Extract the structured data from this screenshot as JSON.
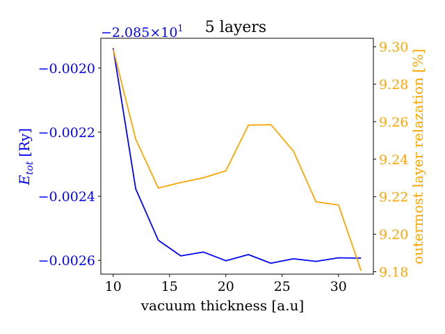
{
  "chart_data": {
    "type": "line",
    "title": "5 layers",
    "xlabel": "vacuum thickness [a.u]",
    "ylabel_left_main": "E",
    "ylabel_left_sub": "tot",
    "ylabel_left_unit": "[Ry]",
    "ylabel_right": "outermost layer relazation [%]",
    "offset_text": "−2.085×10",
    "offset_exponent": "1",
    "xlim": [
      8.9,
      33.1
    ],
    "xticks": [
      10,
      15,
      20,
      25,
      30
    ],
    "xtick_labels": [
      "10",
      "15",
      "20",
      "25",
      "30"
    ],
    "left_axis": {
      "ylim": [
        -0.002643,
        -0.001907
      ],
      "ticks": [
        -0.002,
        -0.0022,
        -0.0024,
        -0.0026
      ],
      "tick_labels": [
        "−0.0020",
        "−0.0022",
        "−0.0024",
        "−0.0026"
      ],
      "color": "#0000ff"
    },
    "right_axis": {
      "ylim": [
        9.1787,
        9.3045
      ],
      "ticks": [
        9.18,
        9.2,
        9.22,
        9.24,
        9.26,
        9.28,
        9.3
      ],
      "tick_labels": [
        "9.18",
        "9.20",
        "9.22",
        "9.24",
        "9.26",
        "9.28",
        "9.30"
      ],
      "color": "#ffa500"
    },
    "series": [
      {
        "axis": "left",
        "color": "#0000ff",
        "x": [
          10,
          12,
          14,
          16,
          18,
          20,
          22,
          24,
          26,
          28,
          30,
          32
        ],
        "y": [
          -0.001938,
          -0.002377,
          -0.002537,
          -0.002586,
          -0.002574,
          -0.002601,
          -0.002582,
          -0.002609,
          -0.002595,
          -0.002603,
          -0.002592,
          -0.002593
        ]
      },
      {
        "axis": "right",
        "color": "#ffa500",
        "x": [
          10,
          12,
          14,
          16,
          18,
          20,
          22,
          24,
          26,
          28,
          30,
          32
        ],
        "y": [
          9.2986,
          9.2506,
          9.2246,
          9.2276,
          9.2301,
          9.2338,
          9.2582,
          9.2584,
          9.2443,
          9.2173,
          9.2156,
          9.1806
        ]
      }
    ]
  }
}
